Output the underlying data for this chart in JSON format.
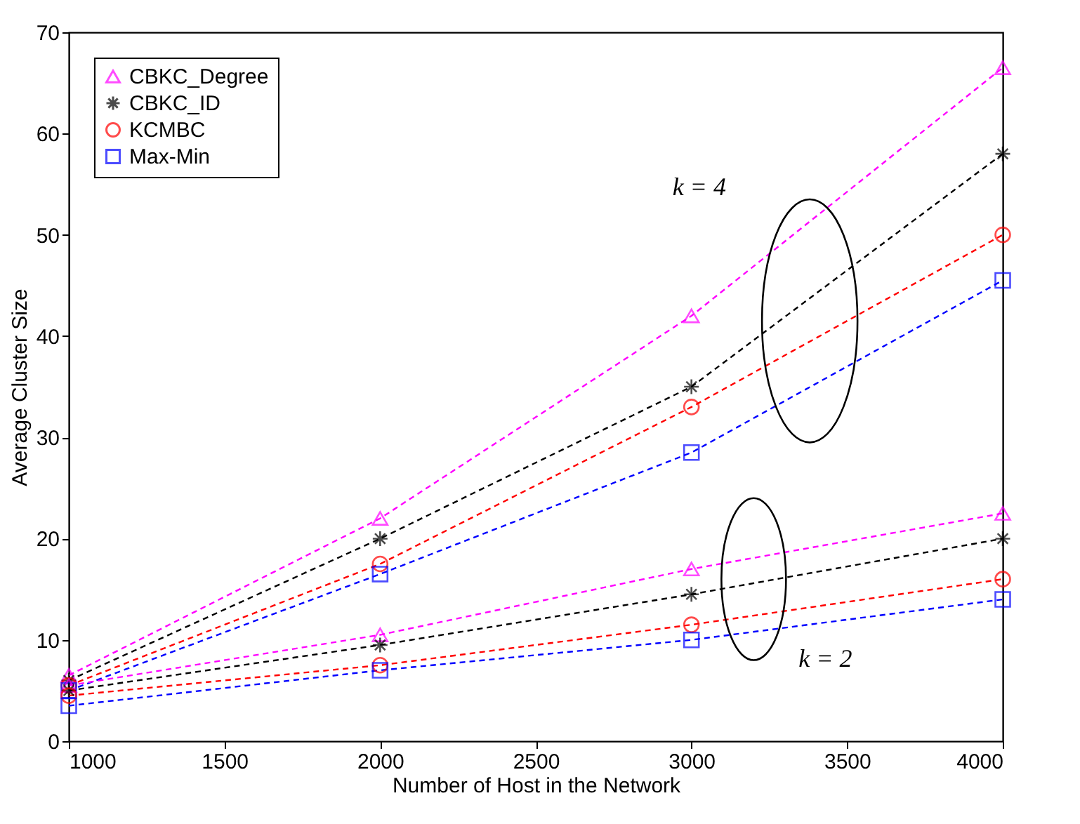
{
  "chart_data": {
    "type": "line",
    "xlabel": "Number of Host in the Network",
    "ylabel": "Average Cluster Size",
    "x": [
      1000,
      2000,
      3000,
      4000
    ],
    "series": [
      {
        "name": "CBKC_Degree",
        "color": "#ff00ff",
        "marker": "triangle",
        "values": [
          6.5,
          22,
          42,
          66.5
        ]
      },
      {
        "name": "CBKC_ID",
        "color": "#000000",
        "marker": "cross",
        "values": [
          6,
          20,
          35,
          58
        ]
      },
      {
        "name": "KCMBC",
        "color": "#ff0000",
        "marker": "circle",
        "values": [
          5.5,
          17.5,
          33,
          50
        ]
      },
      {
        "name": "Max-Min",
        "color": "#0000ff",
        "marker": "square",
        "values": [
          5,
          16.5,
          28.5,
          45.5
        ]
      },
      {
        "color": "#ff00ff",
        "marker": "triangle",
        "values": [
          5.5,
          10.5,
          17,
          22.5
        ]
      },
      {
        "color": "#000000",
        "marker": "cross",
        "values": [
          5,
          9.5,
          14.5,
          20
        ]
      },
      {
        "color": "#ff0000",
        "marker": "circle",
        "values": [
          4.5,
          7.5,
          11.5,
          16
        ]
      },
      {
        "color": "#0000ff",
        "marker": "square",
        "values": [
          3.5,
          7,
          10,
          14
        ]
      }
    ],
    "xlim": [
      1000,
      4000
    ],
    "xticks": [
      1000,
      1500,
      2000,
      2500,
      3000,
      3500,
      4000
    ],
    "ylim": [
      0,
      70
    ],
    "yticks": [
      0,
      10,
      20,
      30,
      40,
      50,
      60,
      70
    ],
    "grid": false,
    "legend": "top left",
    "line_style": "dashed",
    "annotations": [
      "k = 4",
      "k = 2"
    ]
  }
}
